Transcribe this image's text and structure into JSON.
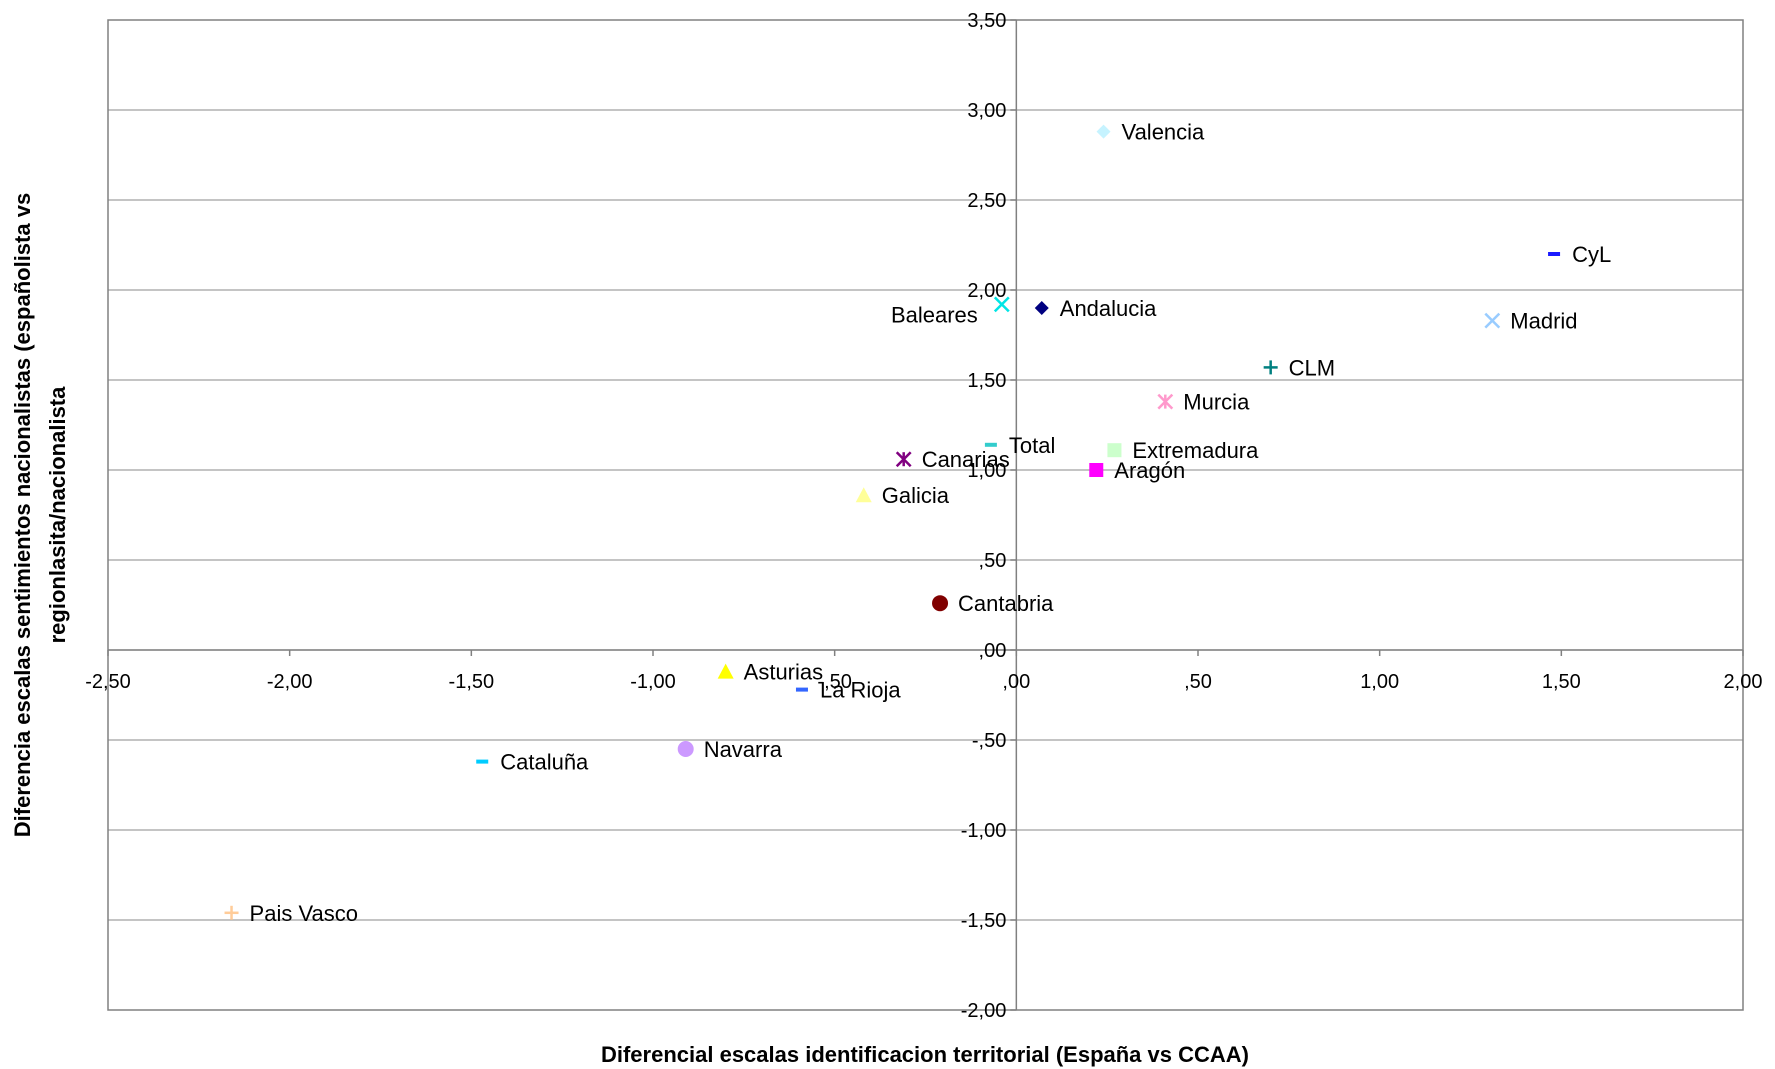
{
  "chart_data": {
    "type": "scatter",
    "xlabel": "Diferencial escalas identificacion territorial (España vs CCAA)",
    "ylabel_lines": [
      "Diferencia escalas sentimientos nacionalistas (españolista vs",
      "regionlasita/nacionalista"
    ],
    "xlim": [
      -2.5,
      2.0
    ],
    "ylim": [
      -2.0,
      3.5
    ],
    "x_ticks": [
      {
        "value": -2.5,
        "label": "-2,50"
      },
      {
        "value": -2.0,
        "label": "-2,00"
      },
      {
        "value": -1.5,
        "label": "-1,50"
      },
      {
        "value": -1.0,
        "label": "-1,00"
      },
      {
        "value": -0.5,
        "label": "-,50"
      },
      {
        "value": 0.0,
        "label": ",00"
      },
      {
        "value": 0.5,
        "label": ",50"
      },
      {
        "value": 1.0,
        "label": "1,00"
      },
      {
        "value": 1.5,
        "label": "1,50"
      },
      {
        "value": 2.0,
        "label": "2,00"
      }
    ],
    "y_ticks": [
      {
        "value": 3.5,
        "label": "3,50"
      },
      {
        "value": 3.0,
        "label": "3,00"
      },
      {
        "value": 2.5,
        "label": "2,50"
      },
      {
        "value": 2.0,
        "label": "2,00"
      },
      {
        "value": 1.5,
        "label": "1,50"
      },
      {
        "value": 1.0,
        "label": "1,00"
      },
      {
        "value": 0.5,
        "label": ",50"
      },
      {
        "value": 0.0,
        "label": ",00"
      },
      {
        "value": -0.5,
        "label": "-,50"
      },
      {
        "value": -1.0,
        "label": "-1,00"
      },
      {
        "value": -1.5,
        "label": "-1,50"
      },
      {
        "value": -2.0,
        "label": "-2,00"
      }
    ],
    "grid": "horizontal",
    "points": [
      {
        "name": "Valencia",
        "x": 0.24,
        "y": 2.88,
        "marker": "diamond",
        "color": "#c6f3ff",
        "label_side": "right"
      },
      {
        "name": "CyL",
        "x": 1.48,
        "y": 2.2,
        "marker": "dash",
        "color": "#1a1aff",
        "label_side": "right"
      },
      {
        "name": "Andalucia",
        "x": 0.07,
        "y": 1.9,
        "marker": "diamond",
        "color": "#000080",
        "label_side": "right"
      },
      {
        "name": "Baleares",
        "x": -0.04,
        "y": 1.92,
        "marker": "x",
        "color": "#00e5e5",
        "label_side": "left-below"
      },
      {
        "name": "Madrid",
        "x": 1.31,
        "y": 1.83,
        "marker": "x",
        "color": "#99ccff",
        "label_side": "right"
      },
      {
        "name": "CLM",
        "x": 0.7,
        "y": 1.57,
        "marker": "plus",
        "color": "#008080",
        "label_side": "right"
      },
      {
        "name": "Murcia",
        "x": 0.41,
        "y": 1.38,
        "marker": "star",
        "color": "#ff99cc",
        "label_side": "right"
      },
      {
        "name": "Total",
        "x": -0.07,
        "y": 1.14,
        "marker": "dash",
        "color": "#33cccc",
        "label_side": "right"
      },
      {
        "name": "Extremadura",
        "x": 0.27,
        "y": 1.11,
        "marker": "square",
        "color": "#ccffcc",
        "label_side": "right"
      },
      {
        "name": "Canarias",
        "x": -0.31,
        "y": 1.06,
        "marker": "star",
        "color": "#800080",
        "label_side": "right"
      },
      {
        "name": "Aragón",
        "x": 0.22,
        "y": 1.0,
        "marker": "square",
        "color": "#ff00ff",
        "label_side": "right"
      },
      {
        "name": "Galicia",
        "x": -0.42,
        "y": 0.86,
        "marker": "triangle",
        "color": "#ffff99",
        "label_side": "right"
      },
      {
        "name": "Cantabria",
        "x": -0.21,
        "y": 0.26,
        "marker": "circle",
        "color": "#800000",
        "label_side": "right"
      },
      {
        "name": "Asturias",
        "x": -0.8,
        "y": -0.12,
        "marker": "triangle",
        "color": "#ffff00",
        "label_side": "right"
      },
      {
        "name": "La Rioja",
        "x": -0.59,
        "y": -0.22,
        "marker": "dash",
        "color": "#3366ff",
        "label_side": "right"
      },
      {
        "name": "Navarra",
        "x": -0.91,
        "y": -0.55,
        "marker": "circle",
        "color": "#cc99ff",
        "label_side": "right"
      },
      {
        "name": "Cataluña",
        "x": -1.47,
        "y": -0.62,
        "marker": "dash",
        "color": "#00ccff",
        "label_side": "right"
      },
      {
        "name": "Pais Vasco",
        "x": -2.16,
        "y": -1.46,
        "marker": "plus",
        "color": "#ffcc99",
        "label_side": "right"
      }
    ]
  }
}
